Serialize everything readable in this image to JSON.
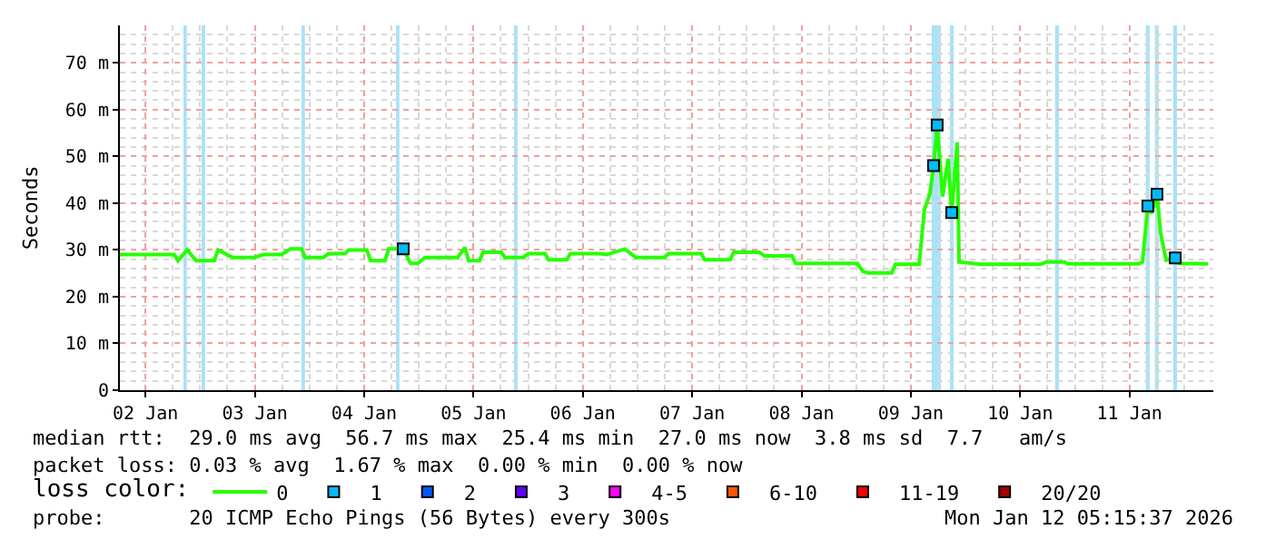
{
  "chart_data": {
    "type": "line",
    "ylabel": "Seconds",
    "legend_title": "loss color:",
    "xlim": [
      "2026-01-02T06:23",
      "2026-01-12T06:24"
    ],
    "xticks": [
      {
        "value": "2026-01-02T12:00",
        "label": "02 Jan"
      },
      {
        "value": "2026-01-03T12:00",
        "label": "03 Jan"
      },
      {
        "value": "2026-01-04T12:00",
        "label": "04 Jan"
      },
      {
        "value": "2026-01-05T12:00",
        "label": "05 Jan"
      },
      {
        "value": "2026-01-06T12:00",
        "label": "06 Jan"
      },
      {
        "value": "2026-01-07T12:00",
        "label": "07 Jan"
      },
      {
        "value": "2026-01-08T12:00",
        "label": "08 Jan"
      },
      {
        "value": "2026-01-09T12:00",
        "label": "09 Jan"
      },
      {
        "value": "2026-01-10T12:00",
        "label": "10 Jan"
      },
      {
        "value": "2026-01-11T12:00",
        "label": "11 Jan"
      }
    ],
    "ylim": [
      0,
      78
    ],
    "yticks": [
      0,
      {
        "value": 10,
        "label": "10 m"
      },
      {
        "value": 20,
        "label": "20 m"
      },
      {
        "value": 30,
        "label": "30 m"
      },
      {
        "value": 40,
        "label": "40 m"
      },
      {
        "value": 50,
        "label": "50 m"
      },
      {
        "value": 60,
        "label": "60 m"
      },
      {
        "value": 70,
        "label": "70 m"
      }
    ],
    "grid": true,
    "legend": "bottom",
    "marker": "none",
    "line_style": "solid",
    "x": [
      "2026-01-02T06:23",
      "2026-01-02T11:58",
      "2026-01-02T18:20",
      "2026-01-02T19:08",
      "2026-01-02T21:08",
      "2026-01-02T23:07",
      "2026-01-03T03:07",
      "2026-01-03T03:55",
      "2026-01-03T07:06",
      "2026-01-03T11:53",
      "2026-01-03T13:53",
      "2026-01-03T17:52",
      "2026-01-03T19:51",
      "2026-01-03T22:15",
      "2026-01-03T23:03",
      "2026-01-04T03:02",
      "2026-01-04T04:14",
      "2026-01-04T07:49",
      "2026-01-04T08:37",
      "2026-01-04T12:36",
      "2026-01-04T13:24",
      "2026-01-04T16:35",
      "2026-01-04T17:23",
      "2026-01-04T20:35",
      "2026-01-04T22:10",
      "2026-01-04T23:46",
      "2026-01-05T01:22",
      "2026-01-05T08:32",
      "2026-01-05T10:08",
      "2026-01-05T10:56",
      "2026-01-05T13:19",
      "2026-01-05T14:07",
      "2026-01-05T18:07",
      "2026-01-05T18:54",
      "2026-01-05T22:53",
      "2026-01-06T00:05",
      "2026-01-06T03:41",
      "2026-01-06T04:28",
      "2026-01-06T08:28",
      "2026-01-06T09:16",
      "2026-01-06T15:38",
      "2026-01-06T17:14",
      "2026-01-06T21:13",
      "2026-01-06T23:37",
      "2026-01-07T05:59",
      "2026-01-07T06:47",
      "2026-01-07T13:58",
      "2026-01-07T14:46",
      "2026-01-07T20:20",
      "2026-01-07T21:08",
      "2026-01-08T02:43",
      "2026-01-08T03:55",
      "2026-01-08T09:54",
      "2026-01-08T10:42",
      "2026-01-09T00:15",
      "2026-01-09T01:27",
      "2026-01-09T02:38",
      "2026-01-09T07:50",
      "2026-01-09T08:37",
      "2026-01-09T13:49",
      "2026-01-09T15:00",
      "2026-01-09T16:12",
      "2026-01-09T17:00",
      "2026-01-09T17:47",
      "2026-01-09T18:59",
      "2026-01-09T20:11",
      "2026-01-09T20:59",
      "2026-01-09T22:11",
      "2026-01-09T22:35",
      "2026-01-10T03:22",
      "2026-01-10T11:20",
      "2026-01-10T16:31",
      "2026-01-10T17:43",
      "2026-01-10T21:42",
      "2026-01-10T22:30",
      "2026-01-11T07:16",
      "2026-01-11T14:03",
      "2026-01-11T14:51",
      "2026-01-11T16:02",
      "2026-01-11T16:50",
      "2026-01-11T18:02",
      "2026-01-11T18:50",
      "2026-01-11T20:02",
      "2026-01-11T22:02",
      "2026-01-11T22:49",
      "2026-01-12T05:12"
    ],
    "series": [
      {
        "name": "0",
        "color": "#26ff00",
        "values": [
          29.0,
          29.0,
          29.0,
          27.7,
          30.0,
          27.7,
          27.7,
          30.0,
          28.4,
          28.4,
          29.0,
          29.0,
          30.2,
          30.2,
          28.4,
          28.4,
          29.2,
          29.2,
          30.0,
          30.0,
          27.7,
          27.7,
          30.2,
          30.2,
          27.1,
          27.1,
          28.4,
          28.4,
          30.5,
          27.7,
          27.7,
          29.5,
          29.5,
          28.4,
          28.4,
          29.2,
          29.2,
          27.9,
          27.9,
          29.2,
          29.2,
          29.0,
          30.2,
          28.4,
          28.4,
          29.2,
          29.2,
          27.9,
          27.9,
          29.5,
          29.5,
          28.7,
          28.7,
          27.1,
          27.1,
          25.4,
          25.1,
          25.1,
          26.9,
          26.9,
          38.7,
          42.0,
          48.0,
          56.7,
          41.4,
          49.5,
          38.0,
          53.0,
          27.4,
          26.9,
          26.9,
          26.9,
          27.4,
          27.4,
          27.0,
          27.0,
          27.0,
          27.4,
          39.4,
          37.8,
          41.9,
          33.6,
          27.8,
          28.3,
          27.1,
          27.0
        ]
      },
      {
        "name": "1",
        "type": "scatter",
        "color": "#00bbff",
        "marker": "square",
        "values": [
          null,
          null,
          null,
          null,
          null,
          null,
          null,
          null,
          null,
          null,
          null,
          null,
          null,
          null,
          null,
          null,
          null,
          null,
          null,
          null,
          null,
          null,
          null,
          30.2,
          null,
          null,
          null,
          null,
          null,
          null,
          null,
          null,
          null,
          null,
          null,
          null,
          null,
          null,
          null,
          null,
          null,
          null,
          null,
          null,
          null,
          null,
          null,
          null,
          null,
          null,
          null,
          null,
          null,
          null,
          null,
          null,
          null,
          null,
          null,
          null,
          null,
          null,
          48.0,
          56.7,
          null,
          null,
          38.0,
          null,
          null,
          null,
          null,
          null,
          null,
          null,
          null,
          null,
          null,
          null,
          39.4,
          null,
          41.9,
          null,
          null,
          28.3,
          null,
          null
        ]
      },
      {
        "name": "2",
        "type": "scatter",
        "color": "#0059ff",
        "marker": "square",
        "values": [
          null,
          null,
          null,
          null,
          null,
          null,
          null,
          null,
          null,
          null,
          null,
          null,
          null,
          null,
          null,
          null,
          null,
          null,
          null,
          null,
          null,
          null,
          null,
          null,
          null,
          null,
          null,
          null,
          null,
          null,
          null,
          null,
          null,
          null,
          null,
          null,
          null,
          null,
          null,
          null,
          null,
          null,
          null,
          null,
          null,
          null,
          null,
          null,
          null,
          null,
          null,
          null,
          null,
          null,
          null,
          null,
          null,
          null,
          null,
          null,
          null,
          null,
          null,
          null,
          null,
          null,
          null,
          null,
          null,
          null,
          null,
          null,
          null,
          null,
          null,
          null,
          null,
          null,
          null,
          null,
          null,
          null,
          null,
          null,
          null,
          null
        ]
      },
      {
        "name": "3",
        "type": "scatter",
        "color": "#5e00ff",
        "marker": "square",
        "values": [
          null,
          null,
          null,
          null,
          null,
          null,
          null,
          null,
          null,
          null,
          null,
          null,
          null,
          null,
          null,
          null,
          null,
          null,
          null,
          null,
          null,
          null,
          null,
          null,
          null,
          null,
          null,
          null,
          null,
          null,
          null,
          null,
          null,
          null,
          null,
          null,
          null,
          null,
          null,
          null,
          null,
          null,
          null,
          null,
          null,
          null,
          null,
          null,
          null,
          null,
          null,
          null,
          null,
          null,
          null,
          null,
          null,
          null,
          null,
          null,
          null,
          null,
          null,
          null,
          null,
          null,
          null,
          null,
          null,
          null,
          null,
          null,
          null,
          null,
          null,
          null,
          null,
          null,
          null,
          null,
          null,
          null,
          null,
          null,
          null,
          null
        ]
      },
      {
        "name": "4-5",
        "type": "scatter",
        "color": "#ff00ff",
        "marker": "square",
        "values": [
          null,
          null,
          null,
          null,
          null,
          null,
          null,
          null,
          null,
          null,
          null,
          null,
          null,
          null,
          null,
          null,
          null,
          null,
          null,
          null,
          null,
          null,
          null,
          null,
          null,
          null,
          null,
          null,
          null,
          null,
          null,
          null,
          null,
          null,
          null,
          null,
          null,
          null,
          null,
          null,
          null,
          null,
          null,
          null,
          null,
          null,
          null,
          null,
          null,
          null,
          null,
          null,
          null,
          null,
          null,
          null,
          null,
          null,
          null,
          null,
          null,
          null,
          null,
          null,
          null,
          null,
          null,
          null,
          null,
          null,
          null,
          null,
          null,
          null,
          null,
          null,
          null,
          null,
          null,
          null,
          null,
          null,
          null,
          null,
          null,
          null
        ]
      },
      {
        "name": "6-10",
        "type": "scatter",
        "color": "#ff5500",
        "marker": "square",
        "values": [
          null,
          null,
          null,
          null,
          null,
          null,
          null,
          null,
          null,
          null,
          null,
          null,
          null,
          null,
          null,
          null,
          null,
          null,
          null,
          null,
          null,
          null,
          null,
          null,
          null,
          null,
          null,
          null,
          null,
          null,
          null,
          null,
          null,
          null,
          null,
          null,
          null,
          null,
          null,
          null,
          null,
          null,
          null,
          null,
          null,
          null,
          null,
          null,
          null,
          null,
          null,
          null,
          null,
          null,
          null,
          null,
          null,
          null,
          null,
          null,
          null,
          null,
          null,
          null,
          null,
          null,
          null,
          null,
          null,
          null,
          null,
          null,
          null,
          null,
          null,
          null,
          null,
          null,
          null,
          null,
          null,
          null,
          null,
          null,
          null,
          null
        ]
      },
      {
        "name": "11-19",
        "type": "scatter",
        "color": "#ff0000",
        "marker": "square",
        "values": [
          null,
          null,
          null,
          null,
          null,
          null,
          null,
          null,
          null,
          null,
          null,
          null,
          null,
          null,
          null,
          null,
          null,
          null,
          null,
          null,
          null,
          null,
          null,
          null,
          null,
          null,
          null,
          null,
          null,
          null,
          null,
          null,
          null,
          null,
          null,
          null,
          null,
          null,
          null,
          null,
          null,
          null,
          null,
          null,
          null,
          null,
          null,
          null,
          null,
          null,
          null,
          null,
          null,
          null,
          null,
          null,
          null,
          null,
          null,
          null,
          null,
          null,
          null,
          null,
          null,
          null,
          null,
          null,
          null,
          null,
          null,
          null,
          null,
          null,
          null,
          null,
          null,
          null,
          null,
          null,
          null,
          null,
          null,
          null,
          null,
          null
        ]
      },
      {
        "name": "20/20",
        "type": "scatter",
        "color": "#a10000",
        "marker": "square",
        "values": [
          null,
          null,
          null,
          null,
          null,
          null,
          null,
          null,
          null,
          null,
          null,
          null,
          null,
          null,
          null,
          null,
          null,
          null,
          null,
          null,
          null,
          null,
          null,
          null,
          null,
          null,
          null,
          null,
          null,
          null,
          null,
          null,
          null,
          null,
          null,
          null,
          null,
          null,
          null,
          null,
          null,
          null,
          null,
          null,
          null,
          null,
          null,
          null,
          null,
          null,
          null,
          null,
          null,
          null,
          null,
          null,
          null,
          null,
          null,
          null,
          null,
          null,
          null,
          null,
          null,
          null,
          null,
          null,
          null,
          null,
          null,
          null,
          null,
          null,
          null,
          null,
          null,
          null,
          null,
          null,
          null,
          null,
          null,
          null,
          null,
          null
        ]
      }
    ],
    "bands": [
      {
        "axis": "x",
        "from": "2026-01-02T20:20",
        "to": "2026-01-02T21:05",
        "color": "#a6e3f7"
      },
      {
        "axis": "x",
        "from": "2026-01-03T00:20",
        "to": "2026-01-03T01:05",
        "color": "#a6e3f7"
      },
      {
        "axis": "x",
        "from": "2026-01-03T22:15",
        "to": "2026-01-03T23:00",
        "color": "#a6e3f7"
      },
      {
        "axis": "x",
        "from": "2026-01-04T19:00",
        "to": "2026-01-04T19:45",
        "color": "#a6e3f7"
      },
      {
        "axis": "x",
        "from": "2026-01-05T20:55",
        "to": "2026-01-05T21:40",
        "color": "#a6e3f7"
      },
      {
        "axis": "x",
        "from": "2026-01-09T16:35",
        "to": "2026-01-09T18:35",
        "color": "#a6e3f7"
      },
      {
        "axis": "x",
        "from": "2026-01-09T20:35",
        "to": "2026-01-09T21:25",
        "color": "#a6e3f7"
      },
      {
        "axis": "x",
        "from": "2026-01-10T19:40",
        "to": "2026-01-10T20:30",
        "color": "#a6e3f7"
      },
      {
        "axis": "x",
        "from": "2026-01-11T15:35",
        "to": "2026-01-11T16:25",
        "color": "#a6e3f7"
      },
      {
        "axis": "x",
        "from": "2026-01-11T17:35",
        "to": "2026-01-11T18:25",
        "color": "#a6e3f7"
      },
      {
        "axis": "x",
        "from": "2026-01-11T21:35",
        "to": "2026-01-11T22:25",
        "color": "#a6e3f7"
      }
    ],
    "annotations": [
      "median rtt:  29.0 ms avg  56.7 ms max  25.4 ms min  27.0 ms now  3.8 ms sd  7.7   am/s",
      "packet loss: 0.03 % avg  1.67 % max  0.00 % min  0.00 % now",
      "probe:       20 ICMP Echo Pings (56 Bytes) every 300s",
      "Mon Jan 12 05:15:37 2026"
    ]
  }
}
